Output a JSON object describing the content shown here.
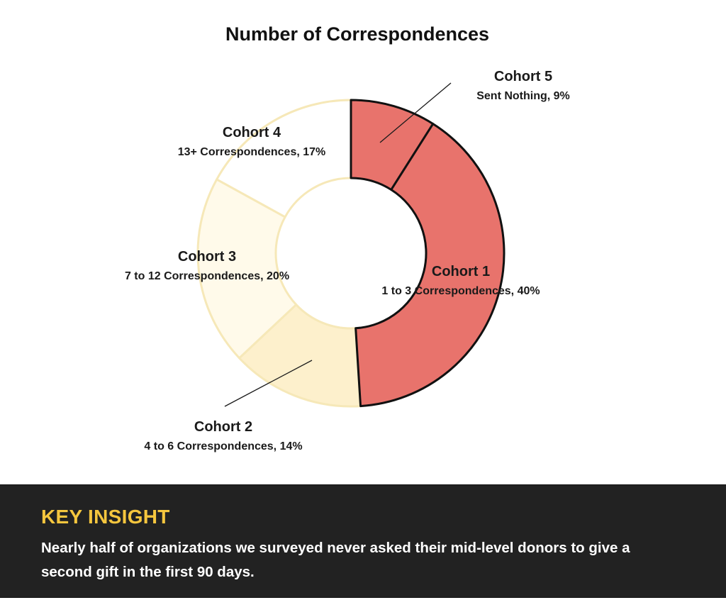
{
  "chart_data": {
    "type": "pie",
    "variant": "donut",
    "title": "Number of Correspondences",
    "slices": [
      {
        "name": "Cohort 5",
        "detail": "Sent Nothing, 9%",
        "value": 9,
        "color": "#e8736c"
      },
      {
        "name": "Cohort 1",
        "detail": "1 to 3 Correspondences, 40%",
        "value": 40,
        "color": "#e8736c"
      },
      {
        "name": "Cohort 2",
        "detail": "4 to 6 Correspondences, 14%",
        "value": 14,
        "color": "#fdf0cc"
      },
      {
        "name": "Cohort 3",
        "detail": "7 to 12 Correspondences, 20%",
        "value": 20,
        "color": "#fffaea"
      },
      {
        "name": "Cohort 4",
        "detail": "13+ Correspondences, 17%",
        "value": 17,
        "color": "#ffffff"
      }
    ],
    "highlight_border_color": "#111111",
    "light_border_color": "#f6e8b8"
  },
  "insight": {
    "heading": "KEY INSIGHT",
    "body": "Nearly half of organizations we surveyed never asked their mid-level donors to give a second gift in the first 90 days."
  }
}
